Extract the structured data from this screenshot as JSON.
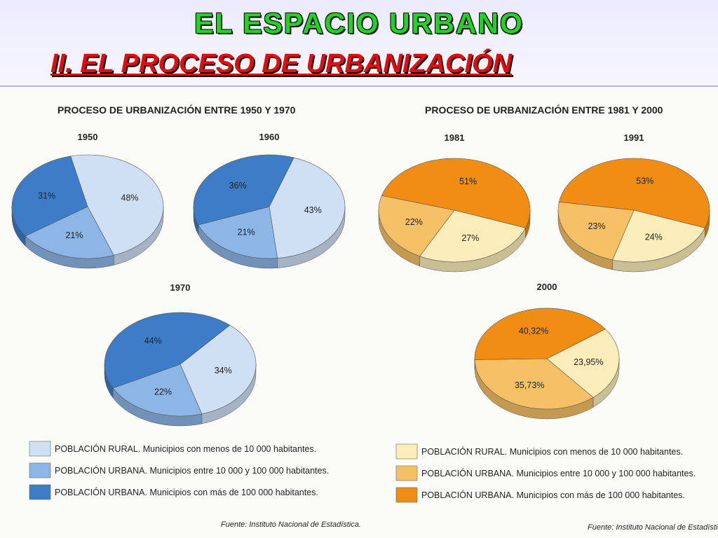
{
  "header": {
    "title": "EL ESPACIO URBANO",
    "subtitle": "II. EL PROCESO DE URBANIZACIÓN"
  },
  "colors": {
    "blue": {
      "rural": "#cfe0f5",
      "urbana_media": "#8db5e6",
      "urbana_grande": "#3d7cc6"
    },
    "orange": {
      "rural": "#fbedb9",
      "urbana_media": "#f5c066",
      "urbana_grande": "#f08d12"
    }
  },
  "panels": [
    {
      "title": "PROCESO DE URBANIZACIÓN ENTRE 1950 Y 1970",
      "legend": [
        "POBLACIÓN RURAL. Municipios con menos de 10 000 habitantes.",
        "POBLACIÓN URBANA. Municipios entre 10 000  y 100 000 habitantes.",
        "POBLACIÓN URBANA. Municipios con más de 100 000 habitantes."
      ],
      "source": "Fuente: Instituto Nacional de Estadística."
    },
    {
      "title": "PROCESO DE URBANIZACIÓN ENTRE 1981 Y 2000",
      "legend": [
        "POBLACIÓN RURAL. Municipios con menos de 10 000 habitantes.",
        "POBLACIÓN URBANA. Municipios entre 10 000  y 100 000 habitantes.",
        "POBLACIÓN URBANA. Municipios con más de 100 000 habitantes."
      ],
      "source": "Fuente: Instituto Nacional de Estadística."
    }
  ],
  "chart_data": [
    {
      "type": "pie",
      "title": "1950",
      "palette": "blue",
      "categories": [
        "rural",
        "urbana_media",
        "urbana_grande"
      ],
      "values": [
        48,
        21,
        31
      ],
      "labels": [
        "48%",
        "21%",
        "31%"
      ]
    },
    {
      "type": "pie",
      "title": "1960",
      "palette": "blue",
      "categories": [
        "rural",
        "urbana_media",
        "urbana_grande"
      ],
      "values": [
        43,
        21,
        36
      ],
      "labels": [
        "43%",
        "21%",
        "36%"
      ]
    },
    {
      "type": "pie",
      "title": "1970",
      "palette": "blue",
      "categories": [
        "rural",
        "urbana_media",
        "urbana_grande"
      ],
      "values": [
        34,
        22,
        44
      ],
      "labels": [
        "34%",
        "22%",
        "44%"
      ]
    },
    {
      "type": "pie",
      "title": "1981",
      "palette": "orange",
      "categories": [
        "rural",
        "urbana_media",
        "urbana_grande"
      ],
      "values": [
        27,
        22,
        51
      ],
      "labels": [
        "27%",
        "22%",
        "51%"
      ]
    },
    {
      "type": "pie",
      "title": "1991",
      "palette": "orange",
      "categories": [
        "rural",
        "urbana_media",
        "urbana_grande"
      ],
      "values": [
        24,
        23,
        53
      ],
      "labels": [
        "24%",
        "23%",
        "53%"
      ]
    },
    {
      "type": "pie",
      "title": "2000",
      "palette": "orange",
      "categories": [
        "rural",
        "urbana_media",
        "urbana_grande"
      ],
      "values": [
        23.95,
        35.73,
        40.32
      ],
      "labels": [
        "23,95%",
        "35,73%",
        "40,32%"
      ]
    }
  ]
}
